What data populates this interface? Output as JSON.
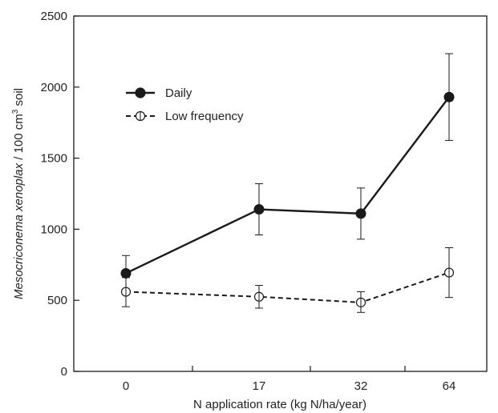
{
  "chart_data": {
    "type": "line",
    "categories": [
      "0",
      "17",
      "32",
      "64"
    ],
    "xlabel": "N application rate (kg N/ha/year)",
    "ylabel_italic": "Mesocriconema xenoplax",
    "ylabel_rest": " / 100 cm",
    "ylabel_sup": "3",
    "ylabel_end": " soil",
    "ylim": [
      0,
      2500
    ],
    "yticks": [
      0,
      500,
      1000,
      1500,
      2000,
      2500
    ],
    "grid": false,
    "legend_position": "upper-left",
    "series": [
      {
        "name": "Daily",
        "marker": "filled-circle",
        "line_style": "solid",
        "values": [
          690,
          1140,
          1110,
          1930
        ],
        "error_low": [
          555,
          960,
          930,
          1625
        ],
        "error_high": [
          815,
          1320,
          1290,
          2235
        ]
      },
      {
        "name": "Low frequency",
        "marker": "open-circle",
        "line_style": "dashed",
        "values": [
          560,
          525,
          485,
          695
        ],
        "error_low": [
          455,
          445,
          415,
          520
        ],
        "error_high": [
          660,
          605,
          560,
          870
        ]
      }
    ]
  },
  "colors": {
    "ink": "#1a1a1a"
  }
}
